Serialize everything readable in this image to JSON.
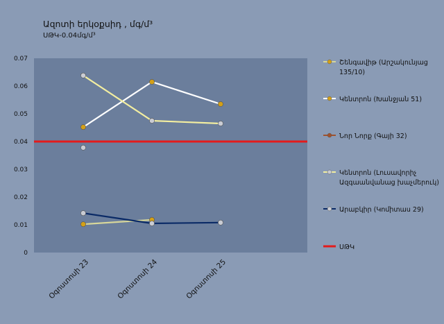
{
  "chart_data": {
    "type": "line",
    "title": "Ազոտի երկօքսիդ , մգ/մ³",
    "subtitle": "ՍԹԿ-0.04մգ/մ³",
    "categories": [
      "Օգոստոսի 23",
      "Օգոստոսի 24",
      "Օգոստոսի 25"
    ],
    "ylim": [
      0,
      0.07
    ],
    "yticks": [
      "0",
      "0.01",
      "0.02",
      "0.03",
      "0.04",
      "0.05",
      "0.06",
      "0.07"
    ],
    "ytick_values": [
      0,
      0.01,
      0.02,
      0.03,
      0.04,
      0.05,
      0.06,
      0.07
    ],
    "legend_position": "right",
    "grid": false,
    "plot_background": "#6b7e9c",
    "series": [
      {
        "name": "Շենգավիթ (Արշակունյաց 135/10)",
        "color": "#d8d79a",
        "marker": "#d4a017",
        "values": [
          0.0102,
          0.0118,
          null
        ]
      },
      {
        "name": "Կենտրոն (Խանջյան 51)",
        "color": "#ffffff",
        "marker": "#d4a017",
        "values": [
          0.0452,
          0.0615,
          0.0535
        ]
      },
      {
        "name": "Նոր Նորք (Գայի 32)",
        "color": "#a0522d",
        "marker": "#a0522d",
        "values": [
          null,
          null,
          null
        ]
      },
      {
        "name": "Կենտրոն (Լուսավորիչ Ազգաանվանաց խաչմերուկ)",
        "color": "#f3eea0",
        "marker": "#c9ccd4",
        "values": [
          0.0638,
          0.0475,
          0.0465
        ]
      },
      {
        "name": "Արաբկիր (Կոմիտաս 29)",
        "color": "#0a2a66",
        "marker": "#c9ccd4",
        "values": [
          0.0142,
          0.0105,
          0.0108
        ]
      },
      {
        "name": "ՍԹԿ",
        "color": "#e31b1b",
        "marker": null,
        "values": [
          0.04,
          0.04,
          0.04
        ]
      }
    ],
    "extra_points": [
      {
        "category": "Օգոստոսի 23",
        "value": 0.0378,
        "color": "#c9ccd4"
      }
    ]
  }
}
